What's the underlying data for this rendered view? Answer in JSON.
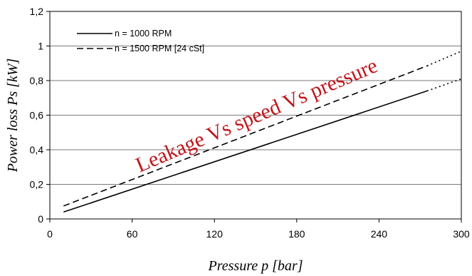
{
  "chart_data": {
    "type": "line",
    "title": "",
    "xlabel": "Pressure p [bar]",
    "ylabel": "Power loss Ps [kW]",
    "xlim": [
      0,
      300
    ],
    "ylim": [
      0,
      1.2
    ],
    "x_ticks": [
      0,
      60,
      120,
      180,
      240,
      300
    ],
    "x_tick_labels": [
      "0",
      "60",
      "120",
      "180",
      "240",
      "300"
    ],
    "y_ticks": [
      0,
      0.2,
      0.4,
      0.6,
      0.8,
      1,
      1.2
    ],
    "y_tick_labels": [
      "0",
      "0,2",
      "0,4",
      "0,6",
      "0,8",
      "1",
      "1,2"
    ],
    "grid": {
      "horizontal": true,
      "vertical": false
    },
    "legend_position": "top-left",
    "series": [
      {
        "name": "n = 1000 RPM",
        "line_style": "solid",
        "color": "#000000",
        "x": [
          10,
          275
        ],
        "y": [
          0.04,
          0.74
        ],
        "extrapolated": {
          "style": "dotted",
          "x": [
            275,
            300
          ],
          "y": [
            0.74,
            0.81
          ]
        }
      },
      {
        "name": "n = 1500 RPM [24 cSt]",
        "line_style": "dashed",
        "color": "#000000",
        "x": [
          10,
          275
        ],
        "y": [
          0.075,
          0.885
        ],
        "extrapolated": {
          "style": "dotted",
          "x": [
            275,
            300
          ],
          "y": [
            0.885,
            0.97
          ]
        }
      }
    ],
    "annotations": [
      {
        "text": "Leakage Vs speed Vs pressure",
        "color": "#c0161c"
      }
    ]
  }
}
